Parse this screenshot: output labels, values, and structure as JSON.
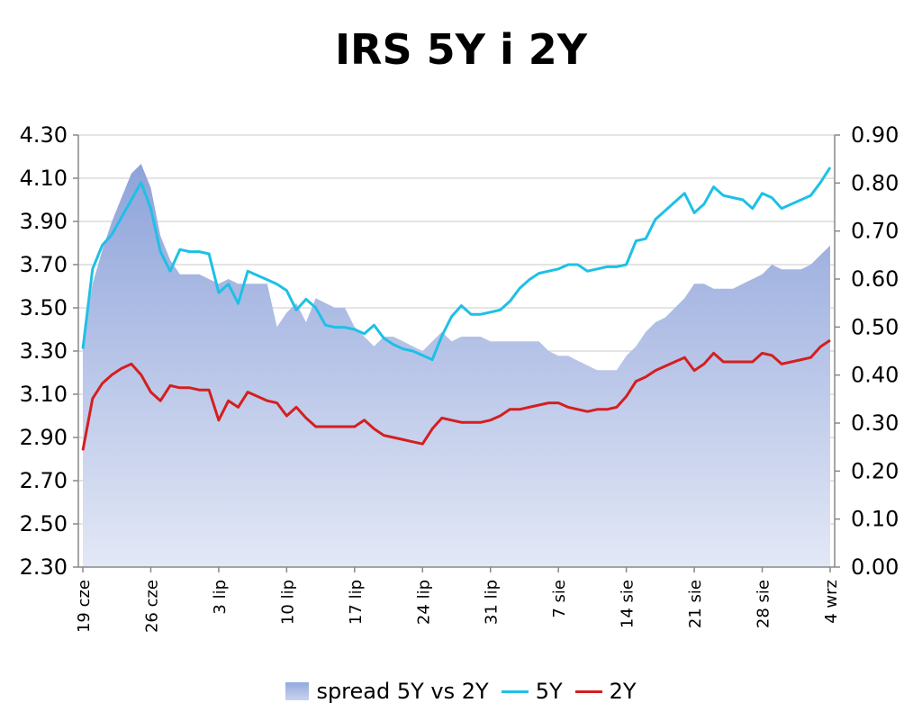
{
  "chart_data": {
    "type": "line",
    "title": "IRS 5Y i 2Y",
    "xlabel": "",
    "ylabel": "",
    "y_left_ticks": [
      "2.30",
      "2.50",
      "2.70",
      "2.90",
      "3.10",
      "3.30",
      "3.50",
      "3.70",
      "3.90",
      "4.10",
      "4.30"
    ],
    "y_right_ticks": [
      "0.00",
      "0.10",
      "0.20",
      "0.30",
      "0.40",
      "0.50",
      "0.60",
      "0.70",
      "0.80",
      "0.90"
    ],
    "ylim_left": [
      2.3,
      4.3
    ],
    "ylim_right": [
      0.0,
      0.9
    ],
    "x_tick_labels": [
      "19 cze",
      "26 cze",
      "3 lip",
      "10 lip",
      "17 lip",
      "24 lip",
      "31 lip",
      "7 sie",
      "14 sie",
      "21 sie",
      "28 sie",
      "4 wrz"
    ],
    "grid": true,
    "legend_position": "bottom",
    "x": [
      "19 cze",
      "20 cze",
      "21 cze",
      "22 cze",
      "23 cze",
      "24 cze",
      "25 cze",
      "26 cze",
      "27 cze",
      "28 cze",
      "29 cze",
      "30 cze",
      "1 lip",
      "2 lip",
      "3 lip",
      "4 lip",
      "5 lip",
      "6 lip",
      "7 lip",
      "8 lip",
      "9 lip",
      "10 lip",
      "11 lip",
      "12 lip",
      "13 lip",
      "14 lip",
      "15 lip",
      "16 lip",
      "17 lip",
      "18 lip",
      "19 lip",
      "20 lip",
      "21 lip",
      "22 lip",
      "23 lip",
      "24 lip",
      "25 lip",
      "26 lip",
      "27 lip",
      "28 lip",
      "29 lip",
      "30 lip",
      "31 lip",
      "1 sie",
      "2 sie",
      "3 sie",
      "4 sie",
      "5 sie",
      "6 sie",
      "7 sie",
      "8 sie",
      "9 sie",
      "10 sie",
      "11 sie",
      "12 sie",
      "13 sie",
      "14 sie",
      "15 sie",
      "16 sie",
      "17 sie",
      "18 sie",
      "19 sie",
      "20 sie",
      "21 sie",
      "22 sie",
      "23 sie",
      "24 sie",
      "25 sie",
      "26 sie",
      "27 sie",
      "28 sie",
      "29 sie",
      "30 sie",
      "31 sie",
      "1 wrz",
      "2 wrz",
      "3 wrz",
      "4 wrz"
    ],
    "series": [
      {
        "name": "spread 5Y vs 2Y",
        "axis": "right",
        "type": "area",
        "color": "#a8b8e4",
        "values": [
          0.46,
          0.59,
          0.66,
          0.72,
          0.77,
          0.82,
          0.84,
          0.79,
          0.69,
          0.64,
          0.61,
          0.61,
          0.61,
          0.6,
          0.59,
          0.6,
          0.59,
          0.59,
          0.59,
          0.59,
          0.5,
          0.53,
          0.55,
          0.51,
          0.56,
          0.55,
          0.54,
          0.54,
          0.5,
          0.48,
          0.46,
          0.48,
          0.48,
          0.47,
          0.46,
          0.45,
          0.47,
          0.49,
          0.47,
          0.48,
          0.48,
          0.48,
          0.47,
          0.47,
          0.47,
          0.47,
          0.47,
          0.47,
          0.45,
          0.44,
          0.44,
          0.43,
          0.42,
          0.41,
          0.41,
          0.41,
          0.44,
          0.46,
          0.49,
          0.51,
          0.52,
          0.54,
          0.56,
          0.59,
          0.59,
          0.58,
          0.58,
          0.58,
          0.59,
          0.6,
          0.61,
          0.63,
          0.62,
          0.62,
          0.62,
          0.63,
          0.65,
          0.67
        ],
        "note_unused": ""
      },
      {
        "name": "5Y",
        "axis": "left",
        "type": "line",
        "color": "#1ec0e6",
        "values": [
          3.31,
          3.68,
          3.79,
          3.84,
          3.92,
          4.0,
          4.08,
          3.96,
          3.76,
          3.67,
          3.77,
          3.76,
          3.76,
          3.75,
          3.57,
          3.61,
          3.52,
          3.67,
          3.65,
          3.63,
          3.61,
          3.58,
          3.49,
          3.54,
          3.5,
          3.42,
          3.41,
          3.41,
          3.4,
          3.38,
          3.42,
          3.36,
          3.33,
          3.31,
          3.3,
          3.28,
          3.26,
          3.37,
          3.46,
          3.51,
          3.47,
          3.47,
          3.48,
          3.49,
          3.53,
          3.59,
          3.63,
          3.66,
          3.67,
          3.68,
          3.7,
          3.7,
          3.67,
          3.68,
          3.69,
          3.69,
          3.7,
          3.81,
          3.82,
          3.91,
          3.95,
          3.99,
          4.03,
          3.94,
          3.98,
          4.06,
          4.02,
          4.01,
          4.0,
          3.96,
          4.03,
          4.01,
          3.96,
          3.98,
          4.0,
          4.02,
          4.08,
          4.15
        ]
      },
      {
        "name": "2Y",
        "axis": "left",
        "type": "line",
        "color": "#d41f1f",
        "values": [
          2.84,
          3.08,
          3.15,
          3.19,
          3.22,
          3.24,
          3.19,
          3.11,
          3.07,
          3.14,
          3.13,
          3.13,
          3.12,
          3.12,
          2.98,
          3.07,
          3.04,
          3.11,
          3.09,
          3.07,
          3.06,
          3.0,
          3.04,
          2.99,
          2.95,
          2.95,
          2.95,
          2.95,
          2.95,
          2.98,
          2.94,
          2.91,
          2.9,
          2.89,
          2.88,
          2.87,
          2.94,
          2.99,
          2.98,
          2.97,
          2.97,
          2.97,
          2.98,
          3.0,
          3.03,
          3.03,
          3.04,
          3.05,
          3.06,
          3.06,
          3.04,
          3.03,
          3.02,
          3.03,
          3.03,
          3.04,
          3.09,
          3.16,
          3.18,
          3.21,
          3.23,
          3.25,
          3.27,
          3.21,
          3.24,
          3.29,
          3.25,
          3.25,
          3.25,
          3.25,
          3.29,
          3.28,
          3.24,
          3.25,
          3.26,
          3.27,
          3.32,
          3.35
        ]
      }
    ]
  }
}
